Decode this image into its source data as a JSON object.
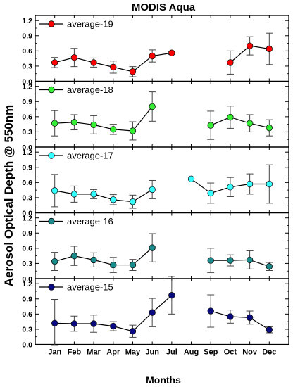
{
  "chart_data": {
    "type": "line",
    "title": "MODIS Aqua",
    "xlabel": "Months",
    "ylabel": "Aerosol Optical Depth @ 550nm",
    "categories": [
      "Jan",
      "Feb",
      "Mar",
      "Apr",
      "May",
      "Jun",
      "Jul",
      "Aug",
      "Sep",
      "Oct",
      "Nov",
      "Dec"
    ],
    "ylim": [
      0,
      1.3
    ],
    "yticks": [
      "0.0",
      "0.3",
      "0.6",
      "0.9",
      "1.2"
    ],
    "panels": [
      {
        "legend": "average-19",
        "color": "#ff0000",
        "values": [
          0.37,
          0.47,
          0.37,
          0.28,
          0.19,
          0.5,
          0.56,
          null,
          null,
          0.37,
          0.7,
          0.64
        ],
        "errors": [
          0.1,
          0.18,
          0.09,
          0.12,
          0.1,
          0.12,
          0.03,
          null,
          null,
          0.23,
          0.18,
          0.31
        ]
      },
      {
        "legend": "average-18",
        "color": "#33ee33",
        "values": [
          0.47,
          0.49,
          0.44,
          0.35,
          0.32,
          0.8,
          null,
          null,
          0.43,
          0.59,
          0.47,
          0.38
        ],
        "errors": [
          0.25,
          0.15,
          0.18,
          0.1,
          0.18,
          0.29,
          null,
          null,
          0.28,
          0.22,
          0.17,
          0.16
        ]
      },
      {
        "legend": "average-17",
        "color": "#33ffff",
        "values": [
          0.44,
          0.37,
          0.37,
          0.26,
          0.22,
          0.46,
          null,
          0.67,
          0.39,
          0.51,
          0.57,
          0.57
        ],
        "errors": [
          0.32,
          0.16,
          0.09,
          0.1,
          0.13,
          0.18,
          null,
          0.0,
          0.2,
          0.19,
          0.2,
          0.38
        ]
      },
      {
        "legend": "average-16",
        "color": "#1a8a8a",
        "values": [
          0.34,
          0.45,
          0.37,
          0.27,
          0.27,
          0.61,
          null,
          null,
          0.36,
          0.36,
          0.37,
          0.24
        ],
        "errors": [
          0.18,
          0.19,
          0.14,
          0.15,
          0.11,
          0.28,
          null,
          null,
          0.24,
          0.11,
          0.18,
          0.08
        ]
      },
      {
        "legend": "average-15",
        "color": "#0a0a80",
        "values": [
          0.42,
          0.41,
          0.41,
          0.36,
          0.26,
          0.63,
          0.97,
          null,
          0.66,
          0.55,
          0.53,
          0.29
        ],
        "errors": [
          0.47,
          0.15,
          0.17,
          0.09,
          0.12,
          0.28,
          0.37,
          null,
          0.32,
          0.13,
          0.13,
          0.06
        ]
      }
    ]
  }
}
